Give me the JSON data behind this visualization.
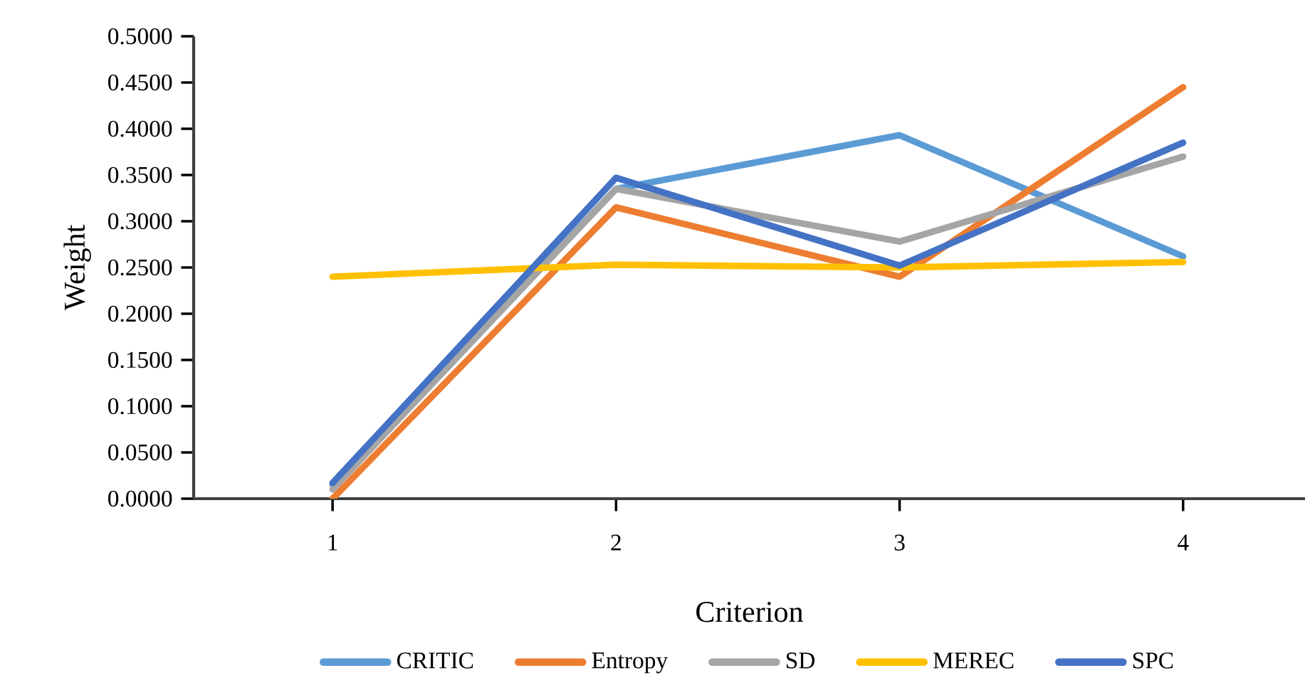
{
  "chart_data": {
    "type": "line",
    "xlabel": "Criterion",
    "ylabel": "Weight",
    "categories": [
      "1",
      "2",
      "3",
      "4"
    ],
    "series": [
      {
        "name": "CRITIC",
        "color": "#5b9bd5",
        "values": [
          0.015,
          0.335,
          0.393,
          0.262
        ]
      },
      {
        "name": "Entropy",
        "color": "#ed7d31",
        "values": [
          0.0,
          0.315,
          0.24,
          0.445
        ]
      },
      {
        "name": "SD",
        "color": "#a5a5a5",
        "values": [
          0.01,
          0.335,
          0.278,
          0.37
        ]
      },
      {
        "name": "MEREC",
        "color": "#ffc000",
        "values": [
          0.24,
          0.253,
          0.25,
          0.256
        ]
      },
      {
        "name": "SPC",
        "color": "#4472c4",
        "values": [
          0.017,
          0.347,
          0.252,
          0.385
        ]
      }
    ],
    "ylim": [
      0,
      0.5
    ],
    "yticks": [
      {
        "value": 0,
        "label": "0.0000"
      },
      {
        "value": 0.05,
        "label": "0.0500"
      },
      {
        "value": 0.1,
        "label": "0.1000"
      },
      {
        "value": 0.15,
        "label": "0.1500"
      },
      {
        "value": 0.2,
        "label": "0.2000"
      },
      {
        "value": 0.25,
        "label": "0.2500"
      },
      {
        "value": 0.3,
        "label": "0.3000"
      },
      {
        "value": 0.35,
        "label": "0.3500"
      },
      {
        "value": 0.4,
        "label": "0.4000"
      },
      {
        "value": 0.45,
        "label": "0.4500"
      },
      {
        "value": 0.5,
        "label": "0.5000"
      }
    ],
    "grid": false,
    "legend": "bottom",
    "marker": "none",
    "line_style": "solid"
  }
}
